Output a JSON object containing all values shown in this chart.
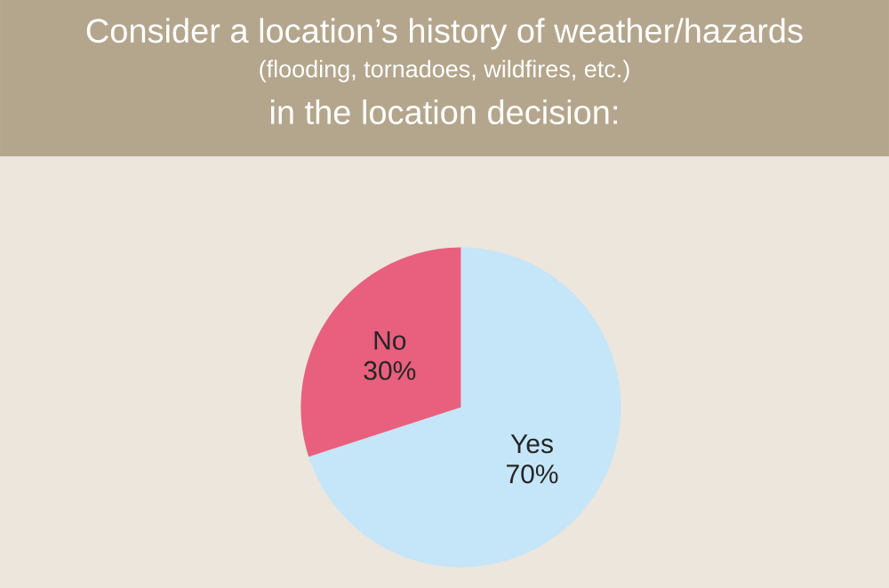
{
  "chart_data": {
    "type": "pie",
    "title": "Consider a location’s history of weather/hazards",
    "subtitle": "(flooding, tornadoes, wildfires, etc.)",
    "annotations": [
      "in the location decision:"
    ],
    "categories": [
      "Yes",
      "No"
    ],
    "values": [
      70,
      30
    ],
    "value_labels": [
      "70%",
      "30%"
    ],
    "colors": [
      "#c5e5f8",
      "#e8607e"
    ]
  }
}
